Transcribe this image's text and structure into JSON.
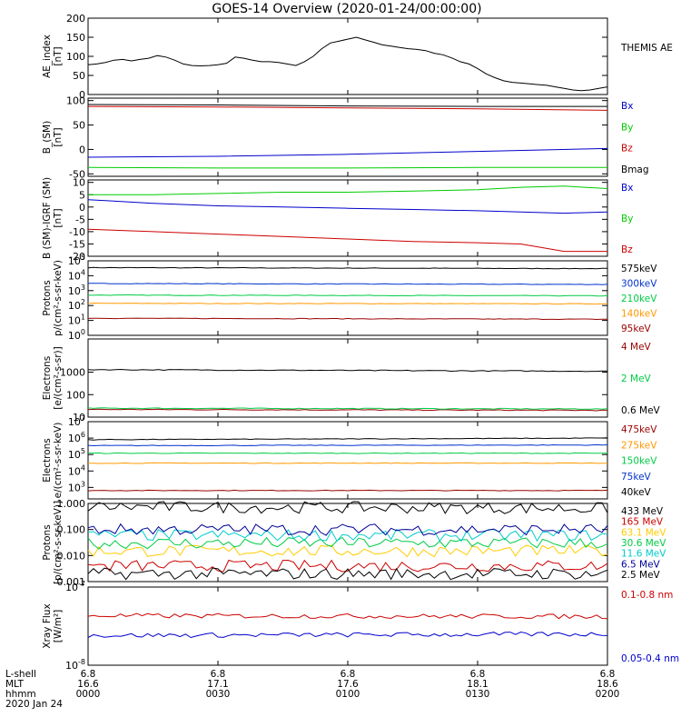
{
  "title": "GOES-14 Overview (2020-01-24/00:00:00)",
  "x_axis": {
    "rows": [
      {
        "label": "L-shell",
        "values": [
          "6.8",
          "6.8",
          "6.8",
          "6.8",
          "6.8"
        ]
      },
      {
        "label": "MLT",
        "values": [
          "16.6",
          "17.1",
          "17.6",
          "18.1",
          "18.6"
        ]
      },
      {
        "label": "hhmm",
        "values": [
          "0000",
          "0030",
          "0100",
          "0130",
          "0200"
        ]
      }
    ],
    "date": "2020 Jan 24"
  },
  "chart_data": [
    {
      "type": "line",
      "ylabel": "AE_index",
      "yunit": "[nT]",
      "yscale": "linear",
      "ylim": [
        0,
        200
      ],
      "ticks": [
        0,
        50,
        100,
        150,
        200
      ],
      "tick_labels": [
        "0",
        "50",
        "100",
        "150",
        "200"
      ],
      "x": [
        0,
        2,
        4,
        6,
        8,
        10,
        12,
        14,
        16,
        18,
        20,
        22,
        24,
        26,
        28,
        30,
        32,
        34,
        36,
        38,
        40,
        42,
        44,
        46,
        48,
        50,
        52,
        54,
        56,
        58,
        60,
        62,
        64,
        66,
        68,
        70,
        72,
        74,
        76,
        78,
        80,
        82,
        84,
        86,
        88,
        90,
        92,
        94,
        96,
        98,
        100,
        102,
        104,
        106,
        108,
        110,
        112,
        114,
        116,
        118,
        120
      ],
      "series": [
        {
          "name": "THEMIS AE",
          "color": "#000000",
          "values": [
            78,
            80,
            84,
            90,
            92,
            88,
            92,
            95,
            102,
            98,
            90,
            80,
            76,
            75,
            76,
            78,
            82,
            98,
            95,
            90,
            86,
            86,
            84,
            80,
            76,
            86,
            100,
            120,
            135,
            140,
            145,
            150,
            143,
            137,
            130,
            127,
            123,
            120,
            118,
            115,
            108,
            104,
            96,
            86,
            80,
            68,
            54,
            44,
            36,
            32,
            30,
            28,
            26,
            24,
            20,
            16,
            12,
            10,
            12,
            16,
            20
          ]
        }
      ]
    },
    {
      "type": "line",
      "ylabel": "B_(SM)",
      "yunit": "[nT]",
      "yscale": "linear",
      "ylim": [
        -55,
        105
      ],
      "ticks": [
        -50,
        0,
        50,
        100
      ],
      "tick_labels": [
        "-50",
        "0",
        "50",
        "100"
      ],
      "x": [
        0,
        30,
        60,
        90,
        120
      ],
      "series": [
        {
          "name": "Bx",
          "color": "#0000cc",
          "values": [
            -16,
            -14,
            -10,
            -4,
            2
          ]
        },
        {
          "name": "By",
          "color": "#00cc00",
          "values": [
            -37,
            -38,
            -38,
            -37,
            -37
          ]
        },
        {
          "name": "Bz",
          "color": "#cc0000",
          "values": [
            88,
            87,
            85,
            83,
            80
          ]
        },
        {
          "name": "Bmag",
          "color": "#000000",
          "values": [
            92,
            91,
            89,
            88,
            88
          ]
        }
      ]
    },
    {
      "type": "line",
      "ylabel": "B (SM)-IGRF (SM)",
      "yunit": "[nT]",
      "yscale": "linear",
      "ylim": [
        -20,
        11
      ],
      "ticks": [
        -20,
        -15,
        -10,
        -5,
        0,
        5,
        10
      ],
      "tick_labels": [
        "-20",
        "-15",
        "-10",
        "-5",
        "0",
        "5",
        "10"
      ],
      "x": [
        0,
        15,
        30,
        45,
        60,
        75,
        90,
        100,
        110,
        120
      ],
      "series": [
        {
          "name": "Bx",
          "color": "#0000cc",
          "values": [
            3,
            1.5,
            0.5,
            0,
            -0.5,
            -1,
            -1.5,
            -2,
            -2.5,
            -2
          ]
        },
        {
          "name": "By",
          "color": "#00cc00",
          "values": [
            5,
            5,
            5.5,
            6,
            6,
            6.5,
            7,
            8,
            8.5,
            7.5
          ]
        },
        {
          "name": "Bz",
          "color": "#cc0000",
          "values": [
            -9,
            -10,
            -11,
            -12,
            -13,
            -14,
            -14.5,
            -15,
            -18,
            -18
          ]
        }
      ]
    },
    {
      "type": "line",
      "ylabel": "Protons",
      "yunit": "p/(cm²-s-sr-keV)",
      "yscale": "log",
      "ylim": [
        1,
        100000
      ],
      "ticks": [
        1,
        10,
        100,
        1000,
        10000,
        100000
      ],
      "tick_labels": [
        "10^0",
        "10^1",
        "10^2",
        "10^3",
        "10^4",
        "10^5"
      ],
      "x": [
        0,
        120
      ],
      "series": [
        {
          "name": "575keV",
          "color": "#000000",
          "values": [
            35000,
            30000
          ]
        },
        {
          "name": "300keV",
          "color": "#0033cc",
          "values": [
            3000,
            2600
          ]
        },
        {
          "name": "210keV",
          "color": "#00cc44",
          "values": [
            500,
            450
          ]
        },
        {
          "name": "140keV",
          "color": "#ff9900",
          "values": [
            140,
            130
          ]
        },
        {
          "name": "95keV",
          "color": "#990000",
          "values": [
            14,
            12
          ]
        }
      ]
    },
    {
      "type": "line",
      "ylabel": "Electrons",
      "yunit": "[e/(cm²-s-sr)]",
      "yscale": "log",
      "ylim": [
        10,
        30000
      ],
      "ticks": [
        10,
        100,
        1000
      ],
      "tick_labels": [
        "10",
        "100",
        "1000"
      ],
      "x": [
        0,
        120
      ],
      "series": [
        {
          "name": "4 MeV",
          "color": "#990000",
          "values": [
            22,
            20
          ]
        },
        {
          "name": "2 MeV",
          "color": "#00cc44",
          "values": [
            25,
            23
          ]
        },
        {
          "name": "0.6 MeV",
          "color": "#000000",
          "values": [
            1300,
            1100
          ]
        }
      ]
    },
    {
      "type": "line",
      "ylabel": "Electrons",
      "yunit": "e/(cm²-s-sr-keV)",
      "yscale": "log",
      "ylim": [
        200,
        10000000
      ],
      "ticks": [
        1000,
        10000,
        100000,
        1000000,
        10000000
      ],
      "tick_labels": [
        "10^3",
        "10^4",
        "10^5",
        "10^6",
        "10^7"
      ],
      "x": [
        0,
        120
      ],
      "series": [
        {
          "name": "475keV",
          "color": "#990000",
          "values": [
            650,
            650
          ]
        },
        {
          "name": "275keV",
          "color": "#ff9900",
          "values": [
            30000,
            30000
          ]
        },
        {
          "name": "150keV",
          "color": "#00cc44",
          "values": [
            120000,
            120000
          ]
        },
        {
          "name": "75keV",
          "color": "#0033cc",
          "values": [
            350000,
            380000
          ]
        },
        {
          "name": "40keV",
          "color": "#000000",
          "values": [
            800000,
            1000000
          ]
        }
      ]
    },
    {
      "type": "line",
      "ylabel": "Protons",
      "yunit": "[p/(cm²-s-sr-keV)]",
      "yscale": "log",
      "ylim": [
        0.001,
        1
      ],
      "ticks": [
        0.001,
        0.01,
        0.1,
        1
      ],
      "tick_labels": [
        "0.001",
        "0.010",
        "0.100",
        "1.000"
      ],
      "x": [
        0,
        120
      ],
      "series": [
        {
          "name": "433 MeV",
          "color": "#000000",
          "values": [
            0.75,
            0.65
          ]
        },
        {
          "name": "165 MeV",
          "color": "#cc0000",
          "values": [
            0.004,
            0.004
          ]
        },
        {
          "name": "63.1 MeV",
          "color": "#ffcc00",
          "values": [
            0.015,
            0.015
          ]
        },
        {
          "name": "30.6 MeV",
          "color": "#00cc44",
          "values": [
            0.03,
            0.03
          ]
        },
        {
          "name": "11.6 MeV",
          "color": "#00cccc",
          "values": [
            0.06,
            0.06
          ]
        },
        {
          "name": "6.5 MeV",
          "color": "#000099",
          "values": [
            0.1,
            0.1
          ]
        },
        {
          "name": "2.5 MeV",
          "color": "#000000",
          "values": [
            0.002,
            0.002
          ]
        }
      ]
    },
    {
      "type": "line",
      "ylabel": "Xray Flux",
      "yunit": "[W/m²]",
      "yscale": "log",
      "ylim": [
        1e-08,
        1e-07
      ],
      "ticks": [
        1e-08,
        1e-07
      ],
      "tick_labels": [
        "10^-8",
        "10^-7"
      ],
      "x": [
        0,
        120
      ],
      "series": [
        {
          "name": "0.1-0.8 nm",
          "color": "#cc0000",
          "values": [
            4.3e-08,
            4.2e-08
          ]
        },
        {
          "name": "0.05-0.4 nm",
          "color": "#0000cc",
          "values": [
            2.4e-08,
            2.5e-08
          ]
        }
      ]
    }
  ]
}
